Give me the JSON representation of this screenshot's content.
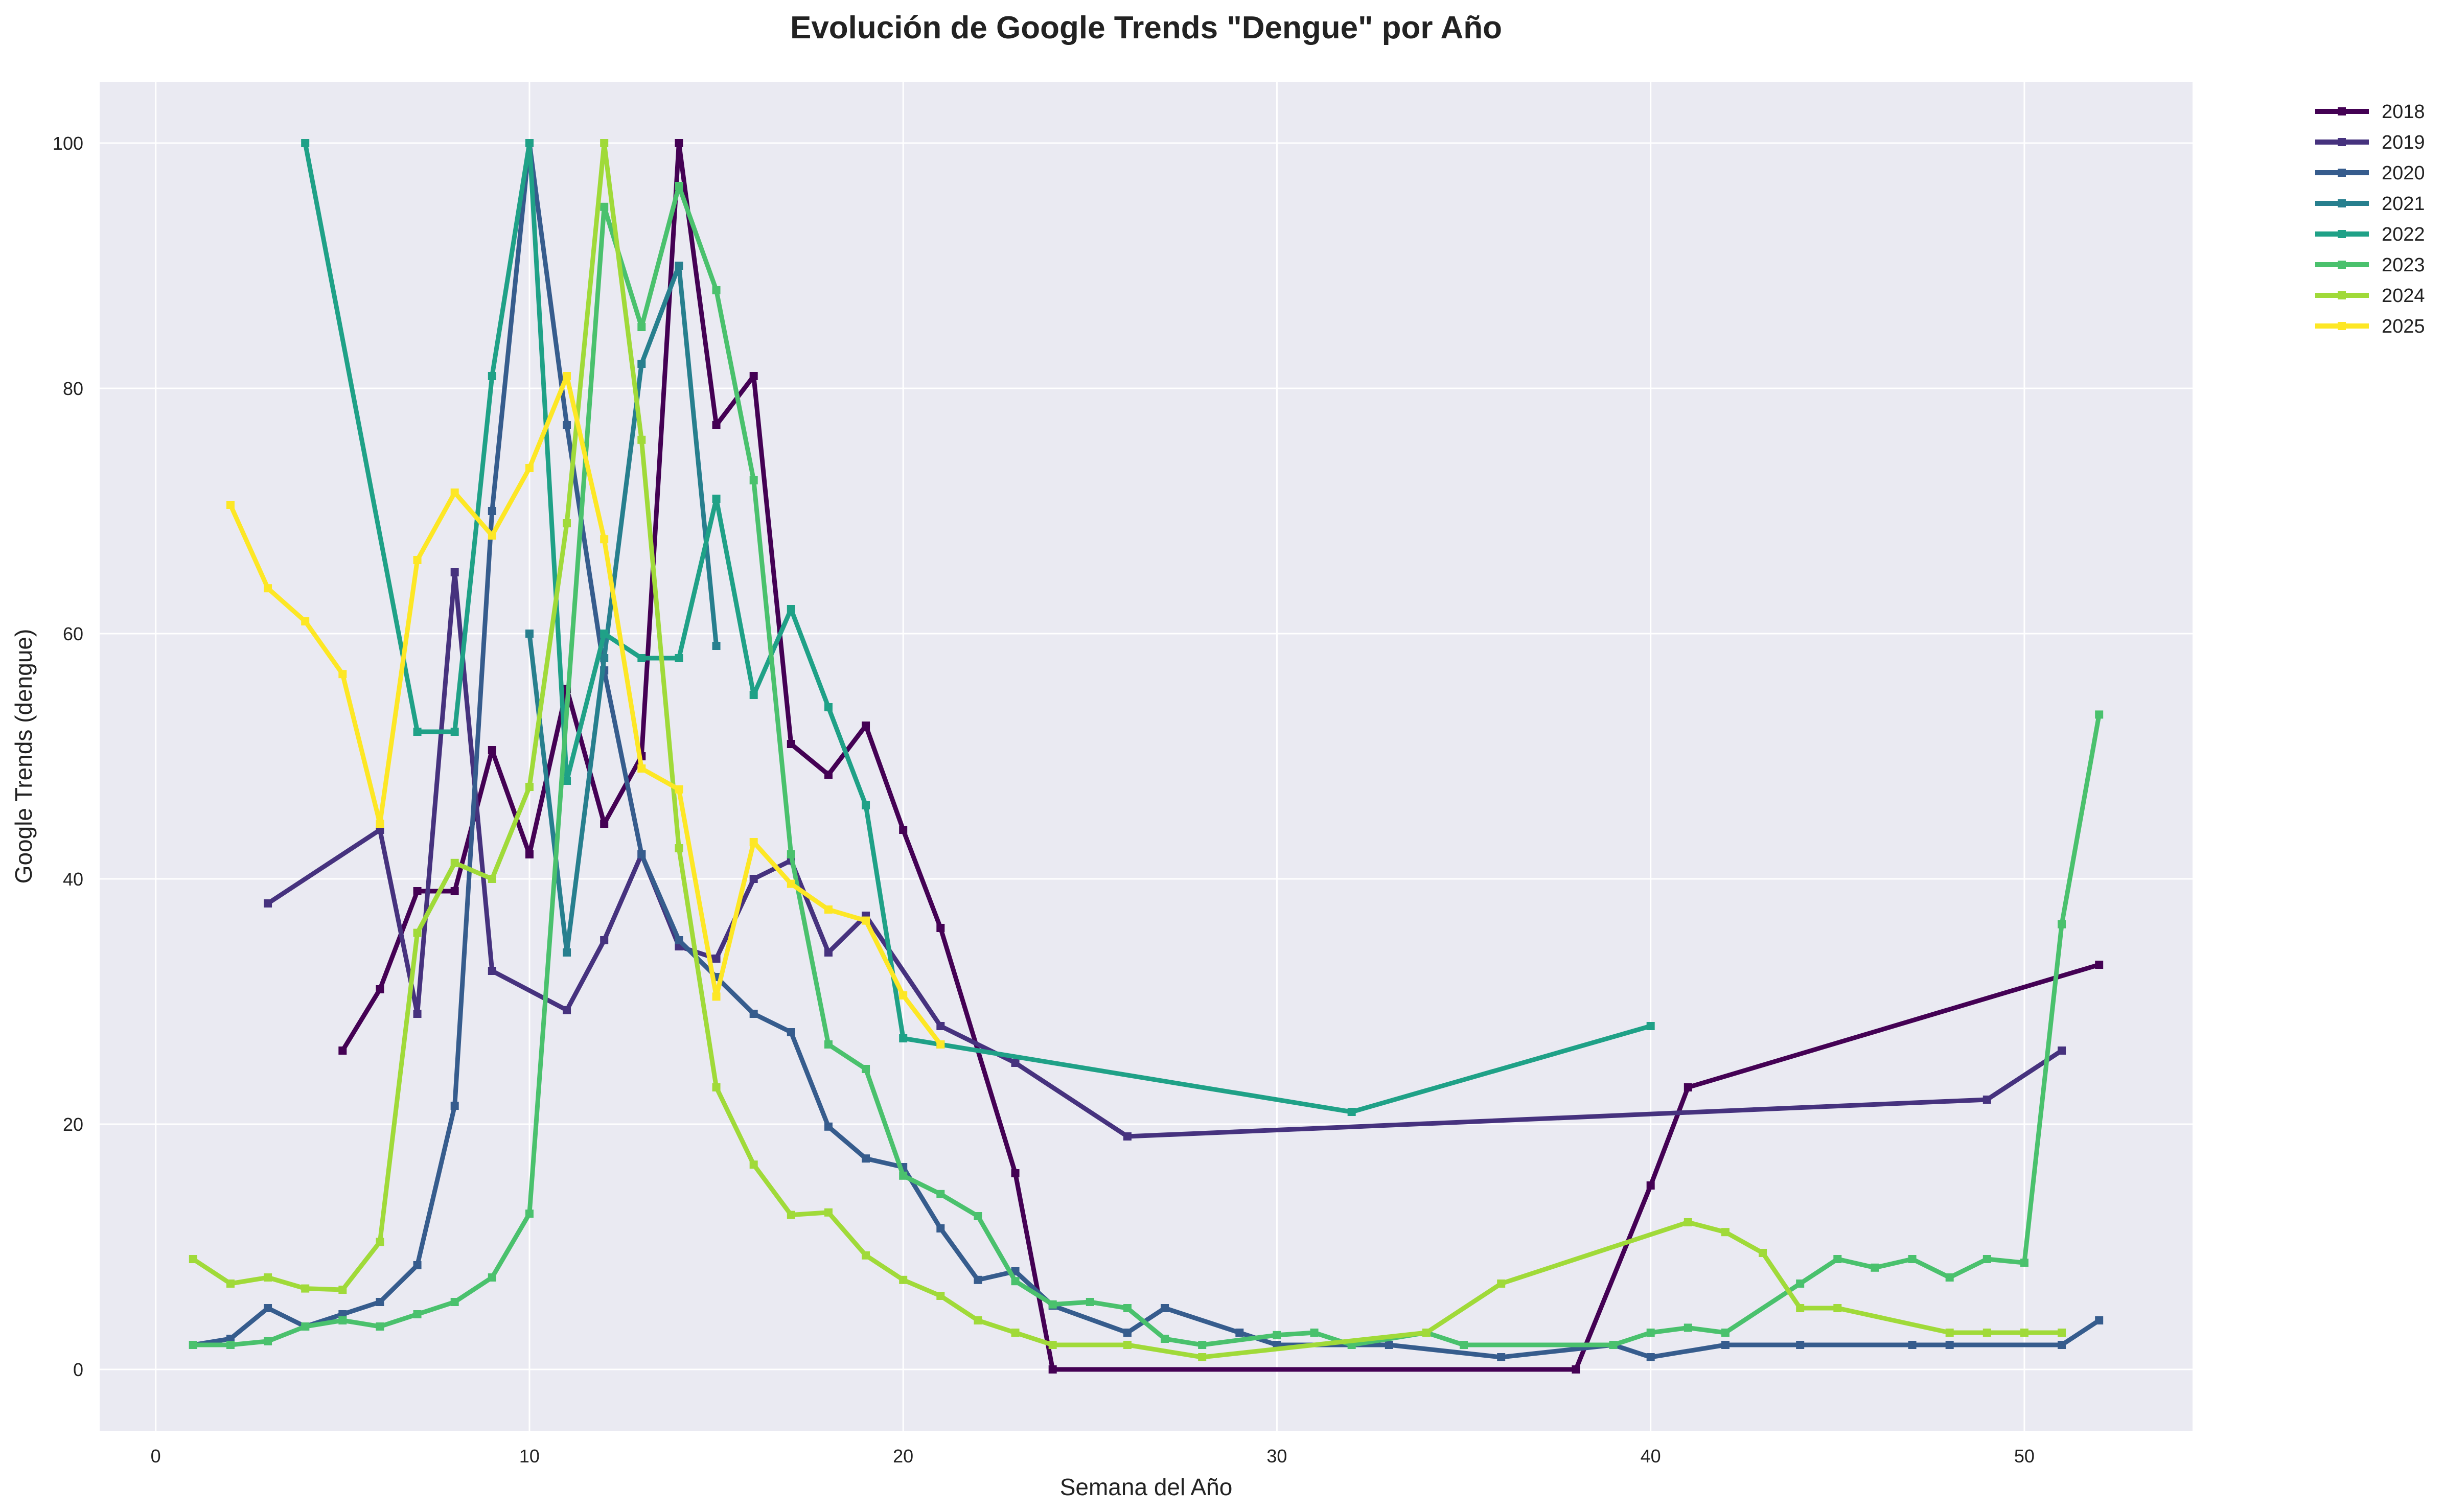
{
  "chart_data": {
    "type": "line",
    "title": "Evolución de Google Trends \"Dengue\" por Año",
    "xlabel": "Semana del Año",
    "ylabel": "Google Trends (dengue)",
    "xlim": [
      -1.5,
      54.5
    ],
    "ylim": [
      -5,
      105
    ],
    "x_ticks": [
      0,
      10,
      20,
      30,
      40,
      50
    ],
    "y_ticks": [
      0,
      20,
      40,
      60,
      80,
      100
    ],
    "grid": true,
    "legend_position": "upper-right-outside",
    "colors": {
      "plot_background": "#eaeaf2",
      "grid": "#ffffff"
    },
    "series": [
      {
        "name": "2018",
        "color": "#440154",
        "points": [
          [
            5,
            26
          ],
          [
            6,
            31
          ],
          [
            7,
            39
          ],
          [
            8,
            39
          ],
          [
            9,
            50.5
          ],
          [
            10,
            42
          ],
          [
            11,
            55.5
          ],
          [
            12,
            44.5
          ],
          [
            13,
            50
          ],
          [
            14,
            100
          ],
          [
            15,
            77
          ],
          [
            16,
            81
          ],
          [
            17,
            51
          ],
          [
            18,
            48.5
          ],
          [
            19,
            52.5
          ],
          [
            20,
            44
          ],
          [
            21,
            36
          ],
          [
            23,
            16
          ],
          [
            24,
            0
          ],
          [
            38,
            0
          ],
          [
            40,
            15
          ],
          [
            41,
            23
          ],
          [
            52,
            33
          ]
        ]
      },
      {
        "name": "2019",
        "color": "#46327e",
        "points": [
          [
            3,
            38
          ],
          [
            6,
            44
          ],
          [
            7,
            29
          ],
          [
            8,
            65
          ],
          [
            9,
            32.5
          ],
          [
            11,
            29.3
          ],
          [
            12,
            35
          ],
          [
            13,
            42
          ],
          [
            14,
            34.5
          ],
          [
            15,
            33.5
          ],
          [
            16,
            40
          ],
          [
            17,
            41.5
          ],
          [
            18,
            34
          ],
          [
            19,
            37
          ],
          [
            21,
            28
          ],
          [
            23,
            25
          ],
          [
            26,
            19
          ],
          [
            49,
            22
          ],
          [
            51,
            26
          ]
        ]
      },
      {
        "name": "2020",
        "color": "#365c8d",
        "points": [
          [
            1,
            2
          ],
          [
            2,
            2.5
          ],
          [
            3,
            5
          ],
          [
            4,
            3.5
          ],
          [
            5,
            4.5
          ],
          [
            6,
            5.5
          ],
          [
            7,
            8.5
          ],
          [
            8,
            21.5
          ],
          [
            9,
            70
          ],
          [
            10,
            100
          ],
          [
            11,
            77
          ],
          [
            12,
            57
          ],
          [
            13,
            42
          ],
          [
            14,
            35
          ],
          [
            15,
            32
          ],
          [
            16,
            29
          ],
          [
            17,
            27.5
          ],
          [
            18,
            19.8
          ],
          [
            19,
            17.2
          ],
          [
            20,
            16.5
          ],
          [
            21,
            11.5
          ],
          [
            22,
            7.3
          ],
          [
            23,
            8
          ],
          [
            24,
            5.2
          ],
          [
            26,
            3
          ],
          [
            27,
            5
          ],
          [
            29,
            3
          ],
          [
            30,
            2
          ],
          [
            33,
            2
          ],
          [
            36,
            1
          ],
          [
            39,
            2
          ],
          [
            40,
            1
          ],
          [
            42,
            2
          ],
          [
            44,
            2
          ],
          [
            47,
            2
          ],
          [
            48,
            2
          ],
          [
            51,
            2
          ],
          [
            52,
            4
          ]
        ]
      },
      {
        "name": "2021",
        "color": "#277f8e",
        "points": [
          [
            10,
            60
          ],
          [
            11,
            34
          ],
          [
            12,
            58
          ],
          [
            13,
            82
          ],
          [
            14,
            90
          ],
          [
            15,
            59
          ]
        ]
      },
      {
        "name": "2022",
        "color": "#1fa187",
        "points": [
          [
            4,
            100
          ],
          [
            7,
            52
          ],
          [
            8,
            52
          ],
          [
            9,
            81
          ],
          [
            10,
            100
          ],
          [
            11,
            48
          ],
          [
            12,
            60
          ],
          [
            13,
            58
          ],
          [
            14,
            58
          ],
          [
            15,
            71
          ],
          [
            16,
            55
          ],
          [
            17,
            62
          ],
          [
            18,
            54
          ],
          [
            19,
            46
          ],
          [
            20,
            27
          ],
          [
            21,
            26.5
          ],
          [
            32,
            21
          ],
          [
            40,
            28
          ]
        ]
      },
      {
        "name": "2023",
        "color": "#4ac16d",
        "points": [
          [
            1,
            2
          ],
          [
            2,
            2
          ],
          [
            3,
            2.3
          ],
          [
            4,
            3.5
          ],
          [
            5,
            4
          ],
          [
            6,
            3.5
          ],
          [
            7,
            4.5
          ],
          [
            8,
            5.5
          ],
          [
            9,
            7.5
          ],
          [
            10,
            12.7
          ],
          [
            12,
            94.8
          ],
          [
            13,
            85
          ],
          [
            14,
            96.5
          ],
          [
            15,
            88
          ],
          [
            16,
            72.5
          ],
          [
            17,
            42
          ],
          [
            18,
            26.5
          ],
          [
            19,
            24.5
          ],
          [
            20,
            15.8
          ],
          [
            21,
            14.3
          ],
          [
            22,
            12.5
          ],
          [
            23,
            7.2
          ],
          [
            24,
            5.3
          ],
          [
            25,
            5.5
          ],
          [
            26,
            5
          ],
          [
            27,
            2.5
          ],
          [
            28,
            2
          ],
          [
            30,
            2.8
          ],
          [
            31,
            3
          ],
          [
            32,
            2
          ],
          [
            34,
            3
          ],
          [
            35,
            2
          ],
          [
            39,
            2
          ],
          [
            40,
            3
          ],
          [
            41,
            3.4
          ],
          [
            42,
            3
          ],
          [
            44,
            7
          ],
          [
            45,
            9
          ],
          [
            46,
            8.3
          ],
          [
            47,
            9
          ],
          [
            48,
            7.5
          ],
          [
            49,
            9
          ],
          [
            50,
            8.7
          ],
          [
            51,
            36.3
          ],
          [
            52,
            53.4
          ]
        ]
      },
      {
        "name": "2024",
        "color": "#a0da39",
        "points": [
          [
            1,
            9
          ],
          [
            2,
            7
          ],
          [
            3,
            7.5
          ],
          [
            4,
            6.6
          ],
          [
            5,
            6.5
          ],
          [
            6,
            10.4
          ],
          [
            7,
            35.6
          ],
          [
            8,
            41.3
          ],
          [
            9,
            40
          ],
          [
            10,
            47.5
          ],
          [
            11,
            69
          ],
          [
            12,
            100
          ],
          [
            13,
            75.8
          ],
          [
            14,
            42.5
          ],
          [
            15,
            23
          ],
          [
            16,
            16.7
          ],
          [
            17,
            12.6
          ],
          [
            18,
            12.8
          ],
          [
            19,
            9.3
          ],
          [
            20,
            7.3
          ],
          [
            21,
            6
          ],
          [
            22,
            4
          ],
          [
            23,
            3
          ],
          [
            24,
            2
          ],
          [
            26,
            2
          ],
          [
            28,
            1
          ],
          [
            34,
            3
          ],
          [
            36,
            7
          ],
          [
            41,
            12
          ],
          [
            42,
            11.2
          ],
          [
            43,
            9.5
          ],
          [
            44,
            5
          ],
          [
            45,
            5
          ],
          [
            48,
            3
          ],
          [
            49,
            3
          ],
          [
            50,
            3
          ],
          [
            51,
            3
          ]
        ]
      },
      {
        "name": "2025",
        "color": "#fde725",
        "points": [
          [
            2,
            70.5
          ],
          [
            3,
            63.7
          ],
          [
            4,
            61
          ],
          [
            5,
            56.7
          ],
          [
            6,
            44.5
          ],
          [
            7,
            66
          ],
          [
            8,
            71.5
          ],
          [
            9,
            68
          ],
          [
            10,
            73.5
          ],
          [
            11,
            81
          ],
          [
            12,
            67.7
          ],
          [
            13,
            49
          ],
          [
            14,
            47.3
          ],
          [
            15,
            30.4
          ],
          [
            16,
            43
          ],
          [
            17,
            39.6
          ],
          [
            18,
            37.5
          ],
          [
            19,
            36.6
          ],
          [
            20,
            30.5
          ],
          [
            21,
            26.5
          ]
        ]
      }
    ]
  }
}
